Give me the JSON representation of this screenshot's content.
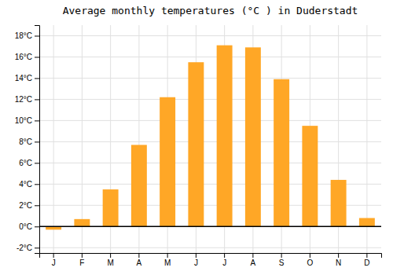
{
  "chart_data": {
    "type": "bar",
    "title": "Average monthly temperatures (°C ) in Duderstadt",
    "categories": [
      "J",
      "F",
      "M",
      "A",
      "M",
      "J",
      "J",
      "A",
      "S",
      "O",
      "N",
      "D"
    ],
    "values": [
      -0.3,
      0.7,
      3.5,
      7.7,
      12.2,
      15.5,
      17.1,
      16.9,
      13.9,
      9.5,
      4.4,
      0.8
    ],
    "color": "#FFA726",
    "ylim": [
      -2.5,
      19
    ],
    "yticks": [
      {
        "value": -2,
        "label": "-2°C"
      },
      {
        "value": 0,
        "label": "0°C"
      },
      {
        "value": 2,
        "label": "2°C"
      },
      {
        "value": 4,
        "label": "4°C"
      },
      {
        "value": 6,
        "label": "6°C"
      },
      {
        "value": 8,
        "label": "8°C"
      },
      {
        "value": 10,
        "label": "10°C"
      },
      {
        "value": 12,
        "label": "12°C"
      },
      {
        "value": 14,
        "label": "14°C"
      },
      {
        "value": 16,
        "label": "16°C"
      },
      {
        "value": 18,
        "label": "18°C"
      }
    ],
    "grid": true
  }
}
